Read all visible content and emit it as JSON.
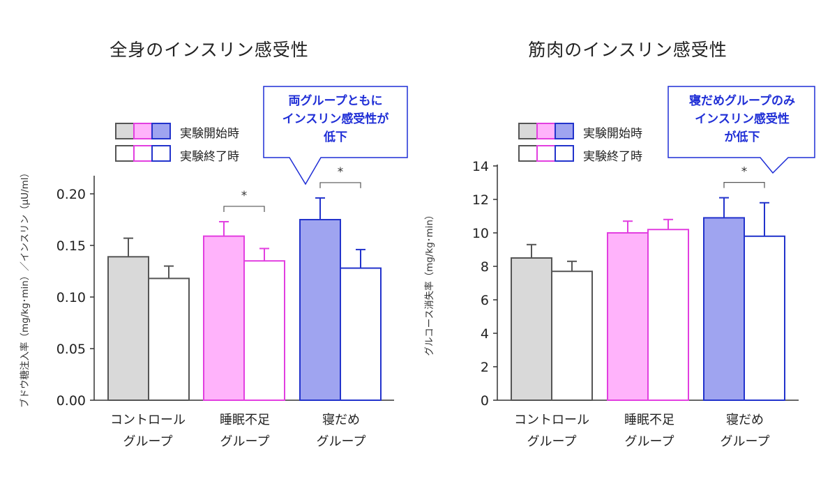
{
  "legend": {
    "start_label": "実験開始時",
    "end_label": "実験終了時"
  },
  "colors": {
    "control_border": "#555555",
    "control_fill": "#d9d9d9",
    "sleep_deprived_border": "#e23fe0",
    "sleep_deprived_fill": "#ffb3fb",
    "bedrest_border": "#2233cc",
    "bedrest_fill": "#9fa4f0",
    "callout": "#1f2ed6"
  },
  "chart_data": [
    {
      "type": "bar",
      "title": "全身のインスリン感受性",
      "ylabel": "ブドウ糖注入率（mg/kg･min）／インスリン（μU/ml）",
      "ylim": [
        0,
        0.2
      ],
      "yticks": [
        "0.00",
        "0.05",
        "0.10",
        "0.15",
        "0.20"
      ],
      "categories": [
        {
          "line1": "コントロール",
          "line2": "グループ"
        },
        {
          "line1": "睡眠不足",
          "line2": "グループ"
        },
        {
          "line1": "寝だめ",
          "line2": "グループ"
        }
      ],
      "series": [
        {
          "name": "実験開始時",
          "values": [
            0.139,
            0.159,
            0.175
          ],
          "errors": [
            0.018,
            0.014,
            0.021
          ]
        },
        {
          "name": "実験終了時",
          "values": [
            0.118,
            0.135,
            0.128
          ],
          "errors": [
            0.012,
            0.012,
            0.018
          ]
        }
      ],
      "significance": [
        {
          "group": 1,
          "mark": "*"
        },
        {
          "group": 2,
          "mark": "*"
        }
      ],
      "callout": [
        "両グループともに",
        "インスリン感受性が",
        "低下"
      ]
    },
    {
      "type": "bar",
      "title": "筋肉のインスリン感受性",
      "ylabel": "グルコース消失率（mg/kg･min）",
      "ylim": [
        0,
        14
      ],
      "yticks": [
        "0",
        "2",
        "4",
        "6",
        "8",
        "10",
        "12",
        "14"
      ],
      "categories": [
        {
          "line1": "コントロール",
          "line2": "グループ"
        },
        {
          "line1": "睡眠不足",
          "line2": "グループ"
        },
        {
          "line1": "寝だめ",
          "line2": "グループ"
        }
      ],
      "series": [
        {
          "name": "実験開始時",
          "values": [
            8.5,
            10.0,
            10.9
          ],
          "errors": [
            0.8,
            0.7,
            1.2
          ]
        },
        {
          "name": "実験終了時",
          "values": [
            7.7,
            10.2,
            9.8
          ],
          "errors": [
            0.6,
            0.6,
            2.0
          ]
        }
      ],
      "significance": [
        {
          "group": 2,
          "mark": "*"
        }
      ],
      "callout": [
        "寝だめグループのみ",
        "インスリン感受性",
        "が低下"
      ]
    }
  ]
}
